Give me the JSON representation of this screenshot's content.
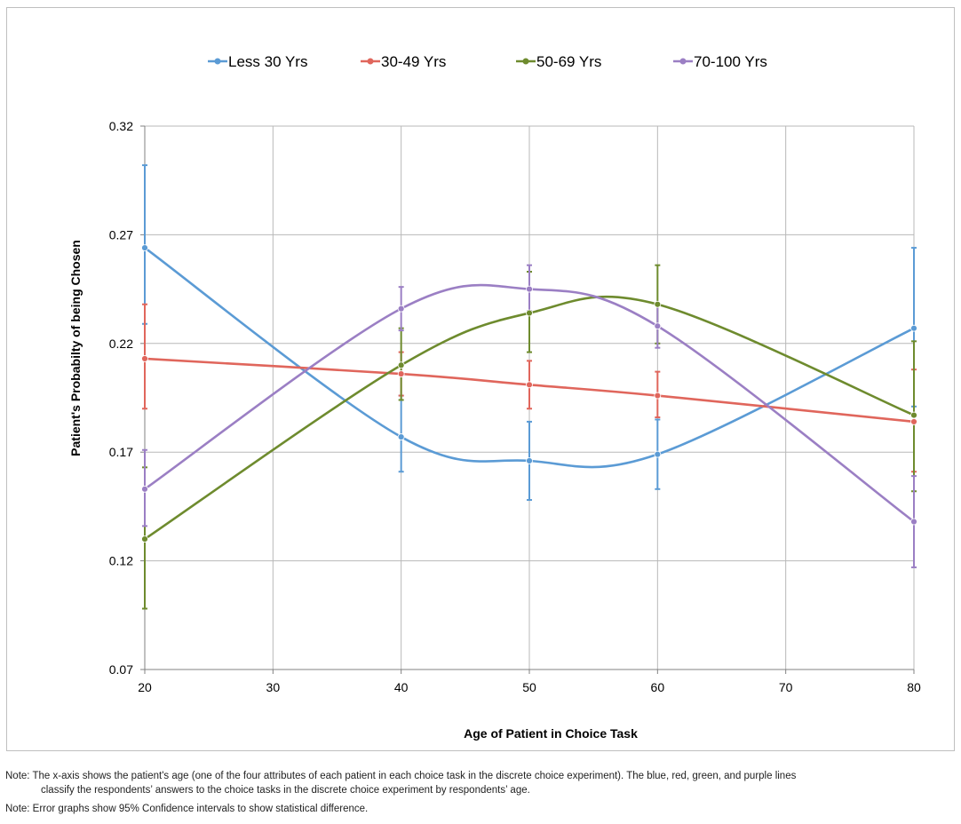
{
  "chart_data": {
    "type": "line",
    "title": "",
    "xlabel": "Age of Patient in Choice Task",
    "ylabel": "Patient's Probabilty of being Chosen",
    "xlim": [
      20,
      80
    ],
    "ylim": [
      0.07,
      0.32
    ],
    "x_ticks": [
      "20",
      "30",
      "40",
      "50",
      "60",
      "70",
      "80"
    ],
    "y_ticks": [
      "0.07",
      "0.12",
      "0.17",
      "0.22",
      "0.27",
      "0.32"
    ],
    "grid": true,
    "legend_position": "top",
    "series": [
      {
        "name": "Less 30 Yrs",
        "color": "#5b9bd5",
        "points": [
          {
            "x": 20,
            "y": 0.264,
            "lo": 0.229,
            "hi": 0.302
          },
          {
            "x": 40,
            "y": 0.177,
            "lo": 0.161,
            "hi": 0.196
          },
          {
            "x": 50,
            "y": 0.166,
            "lo": 0.148,
            "hi": 0.184
          },
          {
            "x": 60,
            "y": 0.169,
            "lo": 0.153,
            "hi": 0.185
          },
          {
            "x": 80,
            "y": 0.227,
            "lo": 0.191,
            "hi": 0.264
          }
        ]
      },
      {
        "name": "30-49 Yrs",
        "color": "#e0665c",
        "points": [
          {
            "x": 20,
            "y": 0.213,
            "lo": 0.19,
            "hi": 0.238
          },
          {
            "x": 40,
            "y": 0.206,
            "lo": 0.196,
            "hi": 0.216
          },
          {
            "x": 50,
            "y": 0.201,
            "lo": 0.19,
            "hi": 0.212
          },
          {
            "x": 60,
            "y": 0.196,
            "lo": 0.186,
            "hi": 0.207
          },
          {
            "x": 80,
            "y": 0.184,
            "lo": 0.161,
            "hi": 0.208
          }
        ]
      },
      {
        "name": "50-69 Yrs",
        "color": "#6e8b2e",
        "points": [
          {
            "x": 20,
            "y": 0.13,
            "lo": 0.098,
            "hi": 0.163
          },
          {
            "x": 40,
            "y": 0.21,
            "lo": 0.194,
            "hi": 0.227
          },
          {
            "x": 50,
            "y": 0.234,
            "lo": 0.216,
            "hi": 0.253
          },
          {
            "x": 60,
            "y": 0.238,
            "lo": 0.22,
            "hi": 0.256
          },
          {
            "x": 80,
            "y": 0.187,
            "lo": 0.152,
            "hi": 0.221
          }
        ]
      },
      {
        "name": "70-100 Yrs",
        "color": "#9b7fc4",
        "points": [
          {
            "x": 20,
            "y": 0.153,
            "lo": 0.136,
            "hi": 0.171
          },
          {
            "x": 40,
            "y": 0.236,
            "lo": 0.226,
            "hi": 0.246
          },
          {
            "x": 50,
            "y": 0.245,
            "lo": 0.235,
            "hi": 0.256
          },
          {
            "x": 60,
            "y": 0.228,
            "lo": 0.218,
            "hi": 0.238
          },
          {
            "x": 80,
            "y": 0.138,
            "lo": 0.117,
            "hi": 0.159
          }
        ]
      }
    ]
  },
  "notes": {
    "note1_line1": "Note: The x-axis shows the patient's age (one of the four attributes of each patient in each choice task in the discrete choice experiment). The blue, red, green, and purple lines",
    "note1_line2": "classify the respondents’ answers to the choice tasks in the discrete choice experiment by respondents’ age.",
    "note2": "Note:  Error graphs show 95% Confidence intervals to show statistical difference."
  }
}
